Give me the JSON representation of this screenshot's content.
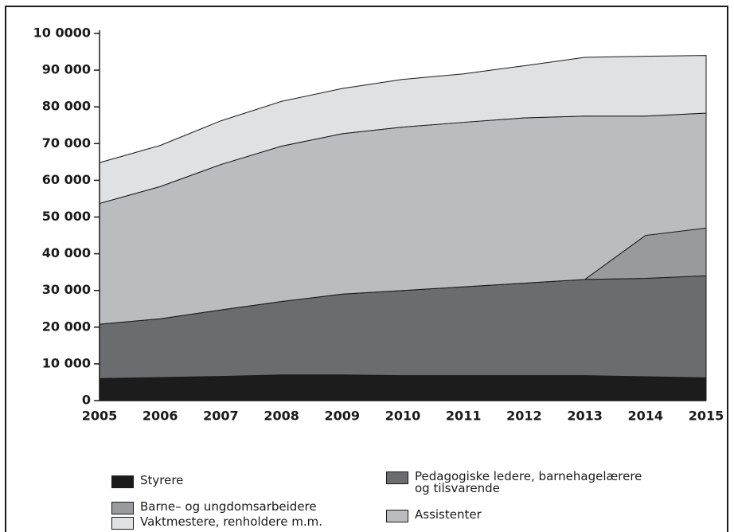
{
  "chart_data": {
    "type": "stacked_area",
    "categories": [
      "2005",
      "2006",
      "2007",
      "2008",
      "2009",
      "2010",
      "2011",
      "2012",
      "2013",
      "2014",
      "2015"
    ],
    "series": [
      {
        "name": "Styrere",
        "color": "#1c1c1c",
        "values": [
          6000,
          6300,
          6600,
          7000,
          7000,
          6800,
          6800,
          6800,
          6800,
          6500,
          6200
        ]
      },
      {
        "name": "Pedagogiske ledere, barnehagelærere og tilsvarende",
        "color": "#6b6c6f",
        "values": [
          14800,
          16000,
          18100,
          20000,
          22000,
          23200,
          24200,
          25200,
          26200,
          26800,
          27800
        ]
      },
      {
        "name": "Barne– og ungdomsarbeidere",
        "color": "#999a9d",
        "values": [
          0,
          0,
          0,
          0,
          0,
          0,
          0,
          0,
          0,
          11700,
          13000
        ]
      },
      {
        "name": "Assistenter",
        "color": "#bbbcbf",
        "values": [
          32900,
          36000,
          39600,
          42300,
          43700,
          44500,
          44800,
          45000,
          44500,
          32500,
          31300
        ]
      },
      {
        "name": "Vaktmestere, renholdere m.m.",
        "color": "#e0e1e3",
        "values": [
          11100,
          11200,
          11900,
          12200,
          12300,
          13000,
          13200,
          14200,
          16000,
          16300,
          15700
        ]
      }
    ],
    "ylim": [
      0,
      100000
    ],
    "yticks": [
      0,
      {
        "value": 10000,
        "label": "10 000"
      },
      {
        "value": 20000,
        "label": "20 000"
      },
      {
        "value": 30000,
        "label": "30 000"
      },
      {
        "value": 40000,
        "label": "40 000"
      },
      {
        "value": 50000,
        "label": "50 000"
      },
      {
        "value": 60000,
        "label": "60 000"
      },
      {
        "value": 70000,
        "label": "70 000"
      },
      {
        "value": 80000,
        "label": "80 000"
      },
      {
        "value": 90000,
        "label": "90 000"
      },
      {
        "value": 100000,
        "label": "10 0000"
      }
    ]
  }
}
